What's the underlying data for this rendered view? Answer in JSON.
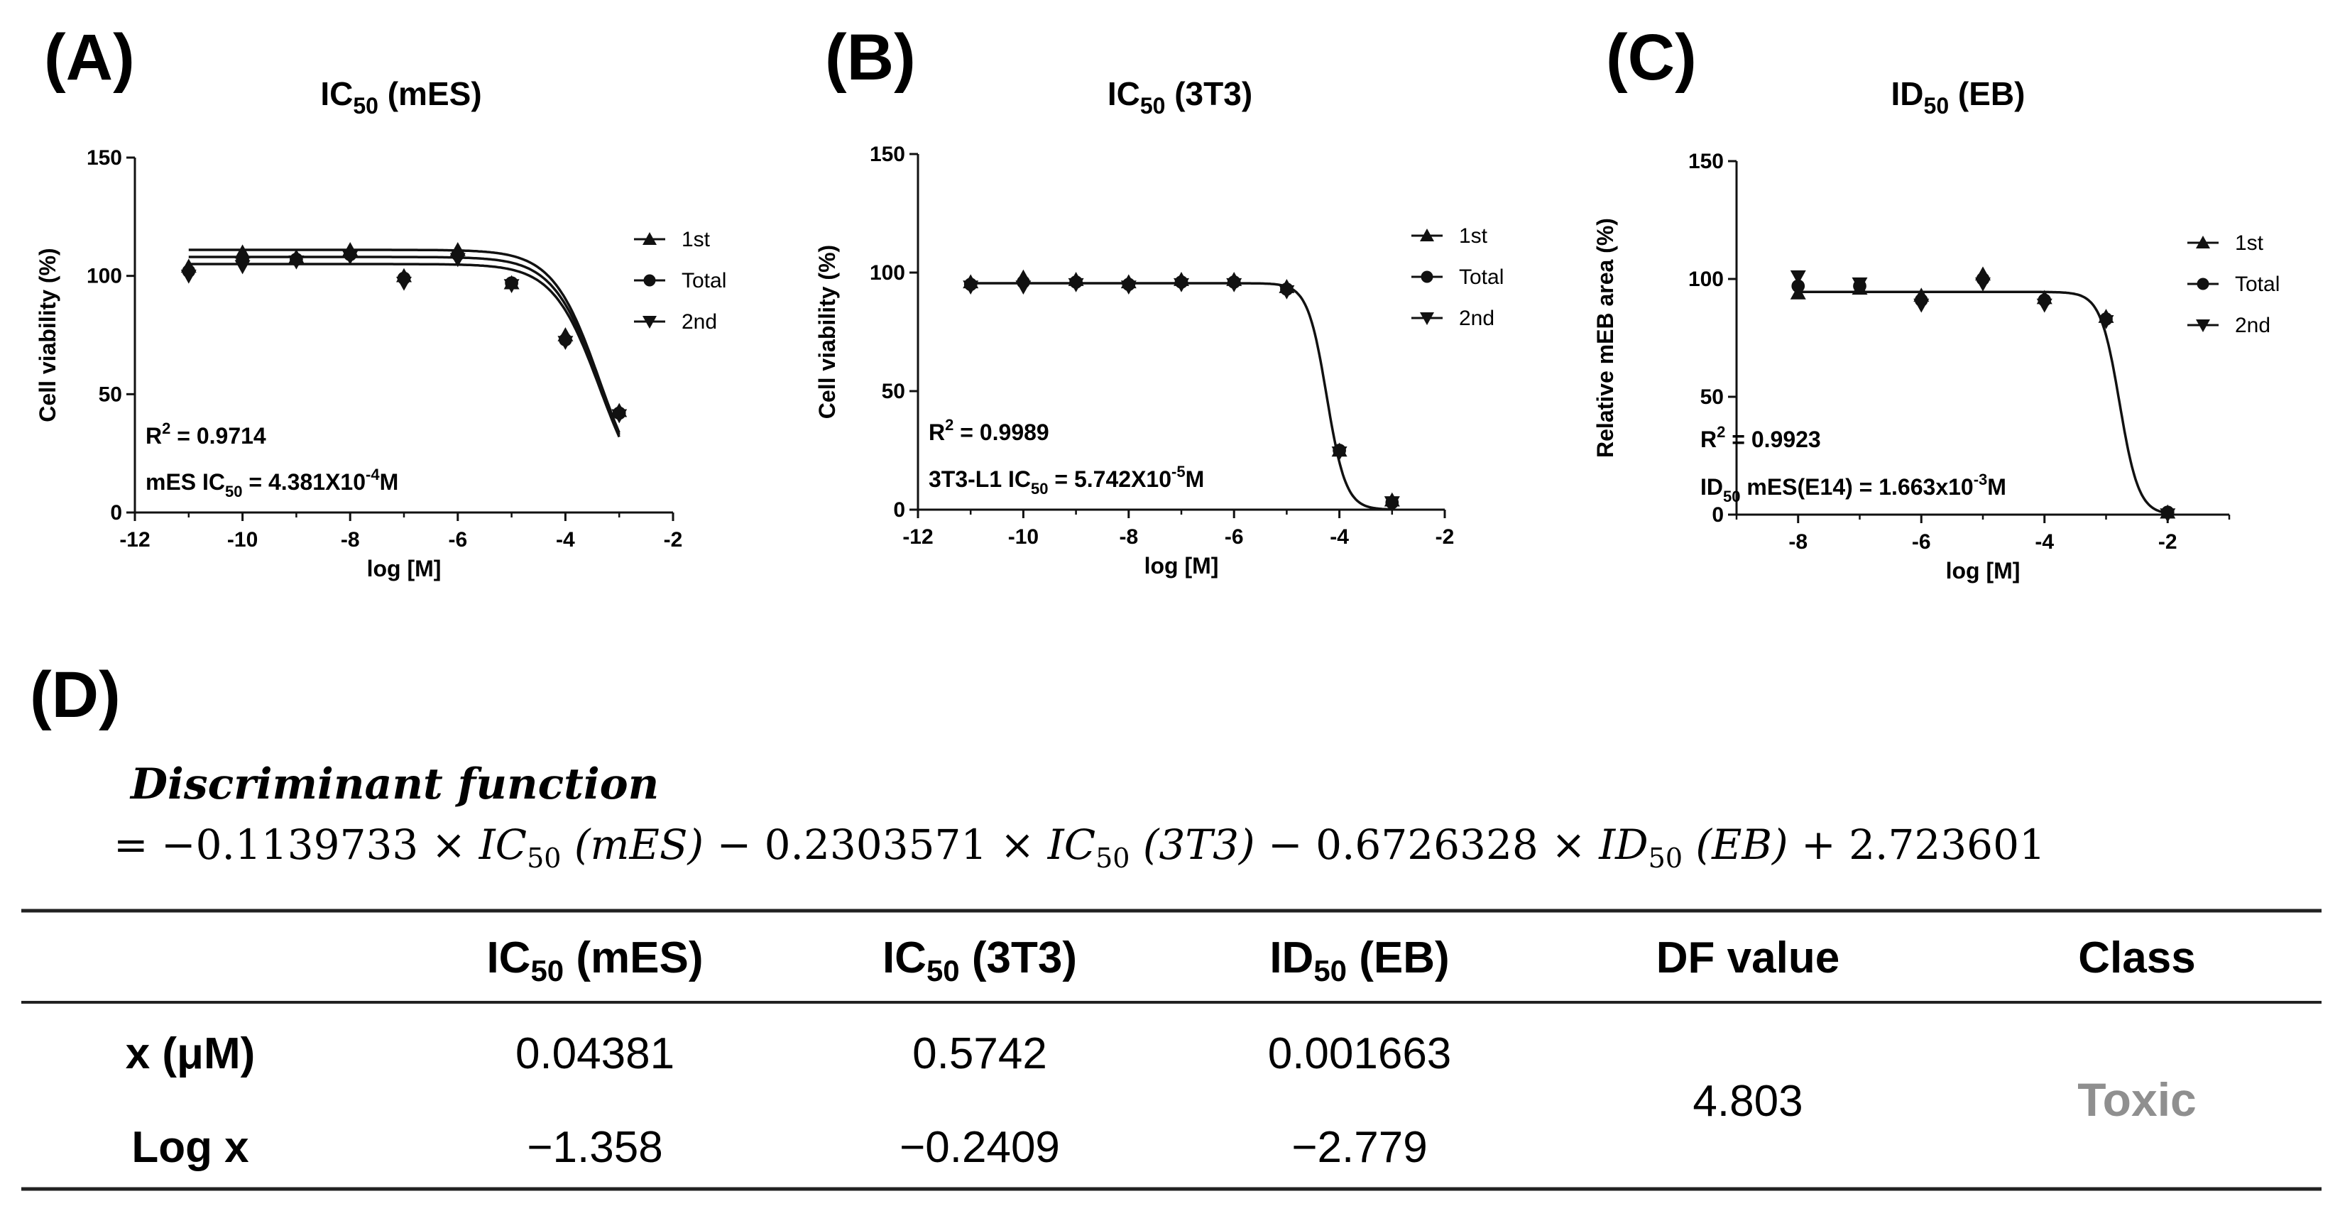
{
  "chart_data": [
    {
      "panel": "(A)",
      "type": "line",
      "title": "IC",
      "title_sub": "50",
      "title_rest": " (mES)",
      "xlabel": "log [M]",
      "ylabel": "Cell viability (%)",
      "xlim": [
        -12,
        -2
      ],
      "ylim": [
        0,
        150
      ],
      "xticks": [
        -12,
        -10,
        -8,
        -6,
        -4,
        -2
      ],
      "yticks": [
        0,
        50,
        100,
        150
      ],
      "x": [
        -11,
        -10,
        -9,
        -8,
        -7,
        -6,
        -5,
        -4,
        -3
      ],
      "series": [
        {
          "name": "1st",
          "marker": "triangle-up",
          "values": [
            104,
            110,
            108,
            111,
            100,
            111,
            97,
            75,
            43
          ]
        },
        {
          "name": "Total",
          "marker": "circle",
          "values": [
            102,
            107,
            107,
            109,
            99,
            109,
            97,
            73,
            42
          ]
        },
        {
          "name": "2nd",
          "marker": "triangle-down",
          "values": [
            100,
            104,
            106,
            108,
            97,
            107,
            96,
            72,
            41
          ]
        }
      ],
      "fits": [
        {
          "top": 111,
          "bottom": 0,
          "logic50": -3.36,
          "hill": 1
        },
        {
          "top": 108,
          "bottom": 0,
          "logic50": -3.36,
          "hill": 1
        },
        {
          "top": 105,
          "bottom": 0,
          "logic50": -3.36,
          "hill": 1
        }
      ],
      "r2_label": "R",
      "r2_sup": "2",
      "r2_value": " = 0.9714",
      "ic_prefix": "mES IC",
      "ic_sub": "50",
      "ic_value": " = 4.381X10",
      "ic_exp": "-4",
      "ic_unit": "M"
    },
    {
      "panel": "(B)",
      "type": "line",
      "title": "IC",
      "title_sub": "50",
      "title_rest": " (3T3)",
      "xlabel": "log [M]",
      "ylabel": "Cell viability (%)",
      "xlim": [
        -12,
        -2
      ],
      "ylim": [
        0,
        150
      ],
      "xticks": [
        -12,
        -10,
        -8,
        -6,
        -4,
        -2
      ],
      "yticks": [
        0,
        50,
        100,
        150
      ],
      "x": [
        -11,
        -10,
        -9,
        -8,
        -7,
        -6,
        -5,
        -4,
        -3
      ],
      "series": [
        {
          "name": "1st",
          "marker": "triangle-up",
          "values": [
            96,
            98,
            97,
            96,
            97,
            97,
            94,
            25,
            4
          ]
        },
        {
          "name": "Total",
          "marker": "circle",
          "values": [
            95,
            96,
            96,
            95,
            96,
            96,
            93,
            25,
            3
          ]
        },
        {
          "name": "2nd",
          "marker": "triangle-down",
          "values": [
            94,
            94,
            95,
            94,
            95,
            95,
            92,
            24,
            3
          ]
        }
      ],
      "fits": [
        {
          "top": 95.5,
          "bottom": 0,
          "logic50": -4.24,
          "hill": 2.4
        }
      ],
      "r2_label": "R",
      "r2_sup": "2",
      "r2_value": " = 0.9989",
      "ic_prefix": "3T3-L1 IC",
      "ic_sub": "50",
      "ic_value": " = 5.742X10",
      "ic_exp": "-5",
      "ic_unit": "M"
    },
    {
      "panel": "(C)",
      "type": "line",
      "title": "ID",
      "title_sub": "50",
      "title_rest": " (EB)",
      "xlabel": "log [M]",
      "ylabel": "Relative mEB area (%)",
      "xlim": [
        -9,
        -1
      ],
      "ylim": [
        0,
        150
      ],
      "xticks": [
        -8,
        -6,
        -4,
        -2
      ],
      "yticks": [
        0,
        50,
        100,
        150
      ],
      "x": [
        -8,
        -7,
        -6,
        -5,
        -4,
        -3,
        -2
      ],
      "series": [
        {
          "name": "1st",
          "marker": "triangle-up",
          "values": [
            94,
            96,
            93,
            102,
            92,
            84,
            1
          ]
        },
        {
          "name": "Total",
          "marker": "circle",
          "values": [
            97,
            97,
            91,
            100,
            91,
            83,
            1
          ]
        },
        {
          "name": "2nd",
          "marker": "triangle-down",
          "values": [
            101,
            98,
            89,
            98,
            89,
            82,
            0
          ]
        }
      ],
      "fits": [
        {
          "top": 94.5,
          "bottom": 0,
          "logic50": -2.78,
          "hill": 2.8
        }
      ],
      "r2_label": "R",
      "r2_sup": "2",
      "r2_value": " = 0.9923",
      "ic_prefix": "ID",
      "ic_sub": "50",
      "ic_value": " mES(E14) = 1.663x10",
      "ic_exp": "-3",
      "ic_unit": "M"
    }
  ],
  "section_d": {
    "panel": "(D)",
    "df_title": "Discriminant function",
    "equation": {
      "eq_sign": "= ",
      "coef1": "−0.1139733 × ",
      "t1": "IC",
      "t1_sub": "50",
      "t1_arg": " (mES)",
      "coef2": " − 0.2303571 × ",
      "t2": "IC",
      "t2_sub": "50",
      "t2_arg": " (3T3)",
      "coef3": " − 0.6726328 × ",
      "t3": "ID",
      "t3_sub": "50",
      "t3_arg": " (EB)",
      "const": " + 2.723601"
    },
    "table": {
      "headers": [
        {
          "main": "IC",
          "sub": "50",
          "rest": " (mES)"
        },
        {
          "main": "IC",
          "sub": "50",
          "rest": " (3T3)"
        },
        {
          "main": "ID",
          "sub": "50",
          "rest": " (EB)"
        },
        {
          "main": "DF value",
          "sub": "",
          "rest": ""
        },
        {
          "main": "Class",
          "sub": "",
          "rest": ""
        }
      ],
      "row1_label": "x (μM)",
      "row1": [
        "0.04381",
        "0.5742",
        "0.001663"
      ],
      "row2_label": "Log x",
      "row2": [
        "−1.358",
        "−0.2409",
        "−2.779"
      ],
      "df_value": "4.803",
      "class_value": "Toxic"
    }
  }
}
